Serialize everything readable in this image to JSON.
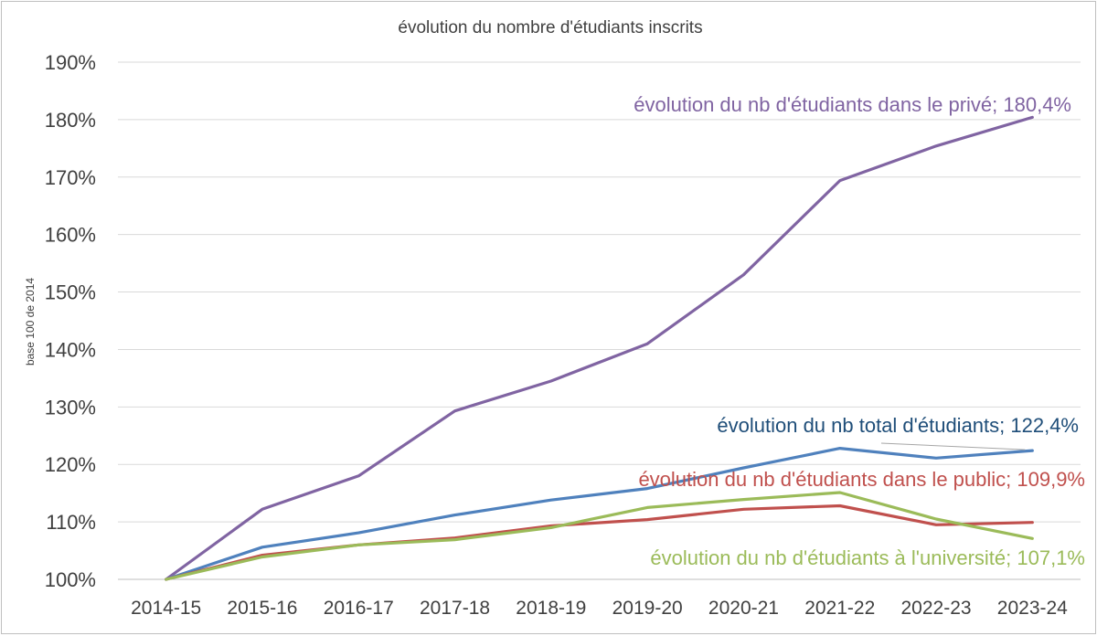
{
  "chart_data": {
    "type": "line",
    "title": "évolution du nombre d'étudiants inscrits",
    "xlabel": "",
    "ylabel": "base 100 de 2014",
    "categories": [
      "2014-15",
      "2015-16",
      "2016-17",
      "2017-18",
      "2018-19",
      "2019-20",
      "2020-21",
      "2021-22",
      "2022-23",
      "2023-24"
    ],
    "ylim": [
      100,
      190
    ],
    "ytick_values": [
      100,
      110,
      120,
      130,
      140,
      150,
      160,
      170,
      180,
      190
    ],
    "ytick_labels": [
      "100%",
      "110%",
      "120%",
      "130%",
      "140%",
      "150%",
      "160%",
      "170%",
      "180%",
      "190%"
    ],
    "grid": true,
    "series": [
      {
        "name": "privé",
        "label": "évolution du nb d'étudiants dans le privé; 180,4%",
        "color": "#8064a2",
        "values": [
          100,
          112.2,
          118,
          129.3,
          134.5,
          141,
          153,
          169.4,
          175.4,
          180.4
        ]
      },
      {
        "name": "total",
        "label": "évolution du nb total d'étudiants; 122,4%",
        "color": "#4f81bd",
        "labelColor": "#1f4e79",
        "values": [
          100,
          105.6,
          108.1,
          111.2,
          113.8,
          115.8,
          119.4,
          122.8,
          121.1,
          122.4
        ]
      },
      {
        "name": "public",
        "label": "évolution du nb d'étudiants dans le public; 109,9%",
        "color": "#c0504d",
        "values": [
          100,
          104.2,
          106,
          107.2,
          109.3,
          110.4,
          112.2,
          112.8,
          109.5,
          109.9
        ]
      },
      {
        "name": "université",
        "label": "évolution du nb d'étudiants à l'université; 107,1%",
        "color": "#9bbb59",
        "values": [
          100,
          103.9,
          106,
          106.9,
          109,
          112.5,
          113.9,
          115.1,
          110.5,
          107.1
        ]
      }
    ]
  }
}
